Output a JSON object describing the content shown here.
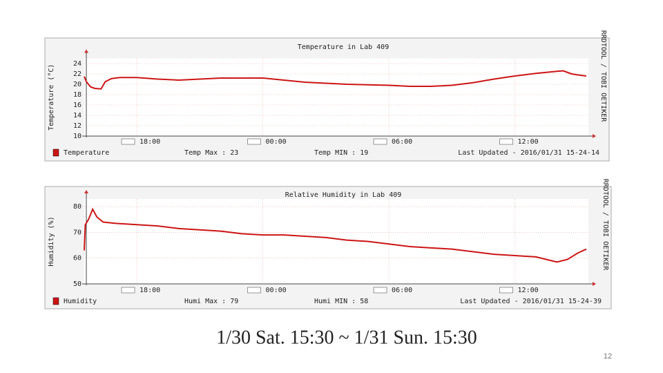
{
  "chart_data": [
    {
      "type": "line",
      "title": "Temperature in Lab 409",
      "y_label": "Temperature (°C)",
      "side_text": "RRDTOOL / TOBI OETIKER",
      "x": [
        15.5,
        15.6,
        15.8,
        16.0,
        16.3,
        16.5,
        16.8,
        17.2,
        18,
        19,
        20,
        21,
        22,
        23,
        24,
        25,
        26,
        27,
        28,
        29,
        30,
        31,
        32,
        33,
        34,
        35,
        36,
        37,
        38,
        38.3,
        38.7,
        39,
        39.4
      ],
      "series": [
        {
          "name": "Temperature",
          "color": "#cc1414",
          "values": [
            21.5,
            20.5,
            19.5,
            19.2,
            19.1,
            20.5,
            21.1,
            21.3,
            21.3,
            21.0,
            20.8,
            21.0,
            21.2,
            21.2,
            21.2,
            20.8,
            20.4,
            20.2,
            20.0,
            19.9,
            19.8,
            19.6,
            19.6,
            19.8,
            20.3,
            21.0,
            21.6,
            22.1,
            22.5,
            22.6,
            22.0,
            21.8,
            21.6
          ]
        }
      ],
      "annotations": [
        "Temp Max : 23",
        "Temp MIN : 19",
        "Last Updated - 2016/01/31 15-24-14"
      ],
      "xlim": [
        15.5,
        39.5
      ],
      "xticks": [
        {
          "value": 18,
          "label": "18:00"
        },
        {
          "value": 24,
          "label": "00:00"
        },
        {
          "value": 30,
          "label": "06:00"
        },
        {
          "value": 36,
          "label": "12:00"
        }
      ],
      "ylim": [
        10,
        25
      ],
      "yticks": [
        10,
        12,
        14,
        16,
        18,
        20,
        22,
        24
      ],
      "grid": true
    },
    {
      "type": "line",
      "title": "Relative Humidity in Lab 409",
      "y_label": "Humidity (%)",
      "side_text": "RRDTOOL / TOBI OETIKER",
      "x": [
        15.5,
        15.55,
        15.7,
        15.9,
        16.1,
        16.4,
        17,
        18,
        19,
        20,
        21,
        22,
        23,
        24,
        25,
        26,
        27,
        28,
        29,
        30,
        31,
        32,
        33,
        34,
        35,
        36,
        37,
        38,
        38.5,
        39,
        39.4
      ],
      "series": [
        {
          "name": "Humidity",
          "color": "#cc1414",
          "values": [
            63,
            73,
            75,
            79,
            76,
            74,
            73.5,
            73,
            72.5,
            71.5,
            71,
            70.5,
            69.5,
            69,
            69,
            68.5,
            68,
            67,
            66.5,
            65.5,
            64.5,
            64,
            63.5,
            62.5,
            61.5,
            61,
            60.5,
            58.5,
            59.5,
            62,
            63.5
          ]
        }
      ],
      "annotations": [
        "Humi Max : 79",
        "Humi MIN : 58",
        "Last Updated - 2016/01/31 15-24-39"
      ],
      "xlim": [
        15.5,
        39.5
      ],
      "xticks": [
        {
          "value": 18,
          "label": "18:00"
        },
        {
          "value": 24,
          "label": "00:00"
        },
        {
          "value": 30,
          "label": "06:00"
        },
        {
          "value": 36,
          "label": "12:00"
        }
      ],
      "ylim": [
        50,
        83
      ],
      "yticks": [
        50,
        60,
        70,
        80
      ],
      "grid": true
    }
  ],
  "footer": {
    "caption": "1/30 Sat. 15:30 ~  1/31 Sun. 15:30",
    "page": "12"
  }
}
